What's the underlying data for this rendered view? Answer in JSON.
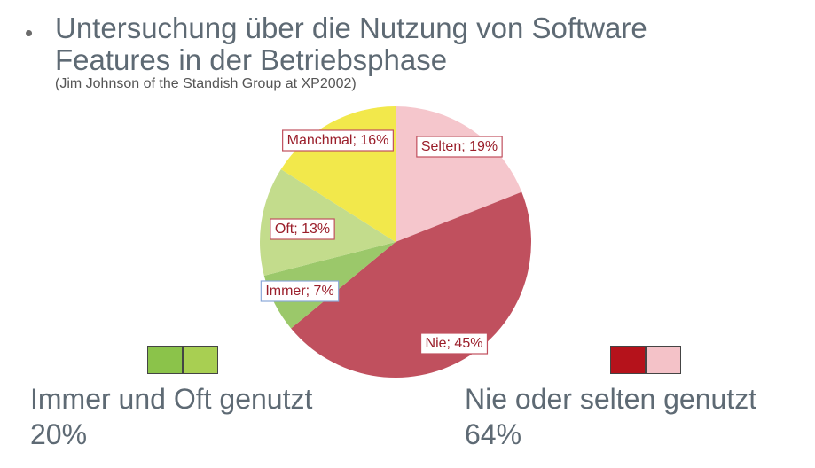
{
  "header": {
    "bullet": "•",
    "title": "Untersuchung über die Nutzung von Software Features in der Betriebsphase",
    "subtitle": "(Jim Johnson of the Standish Group at XP2002)"
  },
  "chart_data": {
    "type": "pie",
    "slices": [
      {
        "label": "Selten; 19%",
        "value": 19,
        "color": "#f5c6cc"
      },
      {
        "label": "Nie; 45%",
        "value": 45,
        "color": "#c0505e"
      },
      {
        "label": "Immer; 7%",
        "value": 7,
        "color": "#9bc86a"
      },
      {
        "label": "Oft; 13%",
        "value": 13,
        "color": "#c3dc8c"
      },
      {
        "label": "Manchmal; 16%",
        "value": 16,
        "color": "#f2e84b"
      }
    ],
    "start_angle_deg": 0,
    "direction": "clockwise",
    "label_border_colors": {
      "Selten; 19%": "#c0505e",
      "Nie; 45%": "#c0505e",
      "Immer; 7%": "#8aa8d8",
      "Oft; 13%": "#c0505e",
      "Manchmal; 16%": "#c0505e"
    }
  },
  "groups": {
    "left": {
      "swatch_colors": [
        "#8bc34a",
        "#a8cf52"
      ],
      "caption_line1": "Immer und Oft genutzt",
      "caption_line2": "20%"
    },
    "right": {
      "swatch_colors": [
        "#b5121b",
        "#f4c2c8"
      ],
      "caption_line1": "Nie oder selten genutzt",
      "caption_line2": "64%"
    }
  }
}
